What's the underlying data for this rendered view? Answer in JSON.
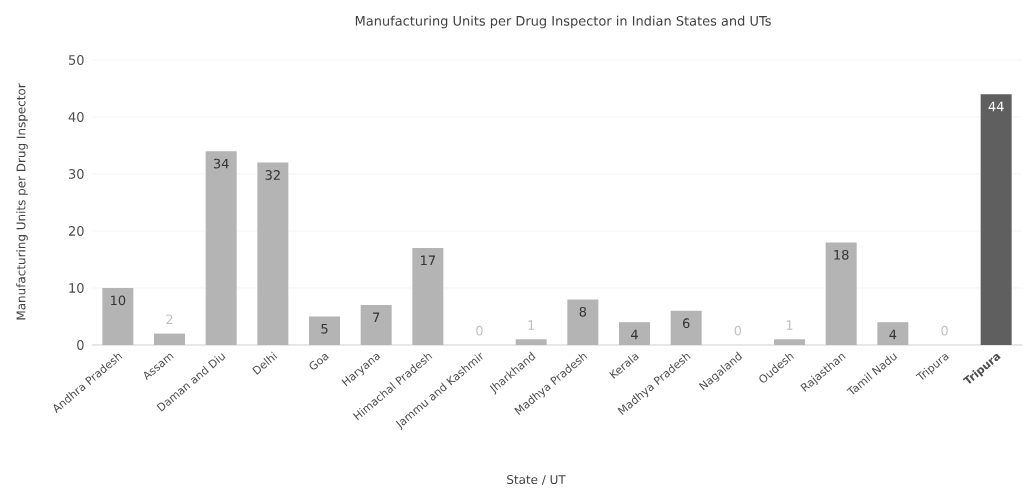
{
  "chart_data": {
    "type": "bar",
    "title": "Manufacturing Units per Drug Inspector in Indian States and UTs",
    "xlabel": "State / UT",
    "ylabel": "Manufacturing Units per Drug Inspector",
    "categories": [
      "Andhra Pradesh",
      "Assam",
      "Daman and Diu",
      "Delhi",
      "Goa",
      "Haryana",
      "Himachal Pradesh",
      "Jammu and Kashmir",
      "Jharkhand",
      "Madhya Pradesh",
      "Kerala",
      "Madhya Pradesh",
      "Nagaland",
      "Oudesh",
      "Rajasthan",
      "Tamil Nadu",
      "Tripura",
      "Tripura"
    ],
    "values": [
      10,
      2,
      34,
      32,
      5,
      7,
      17,
      0,
      1,
      8,
      4,
      6,
      0,
      1,
      18,
      4,
      0,
      44
    ],
    "value_labels": [
      "10",
      "2",
      "34",
      "32",
      "5",
      "7",
      "17",
      "0",
      "1",
      "8",
      "4",
      "6",
      "0",
      "1",
      "18",
      "4",
      "0",
      "44"
    ],
    "colors": [
      "#b4b4b4",
      "#b4b4b4",
      "#b4b4b4",
      "#b4b4b4",
      "#b4b4b4",
      "#b4b4b4",
      "#b4b4b4",
      "#b4b4b4",
      "#b4b4b4",
      "#b4b4b4",
      "#b4b4b4",
      "#b4b4b4",
      "#b4b4b4",
      "#b4b4b4",
      "#b4b4b4",
      "#b4b4b4",
      "#b4b4b4",
      "#5f5f5f"
    ],
    "ylim": [
      0,
      50
    ],
    "yticks": [
      0,
      10,
      20,
      30,
      40,
      50
    ],
    "grid": "y"
  }
}
